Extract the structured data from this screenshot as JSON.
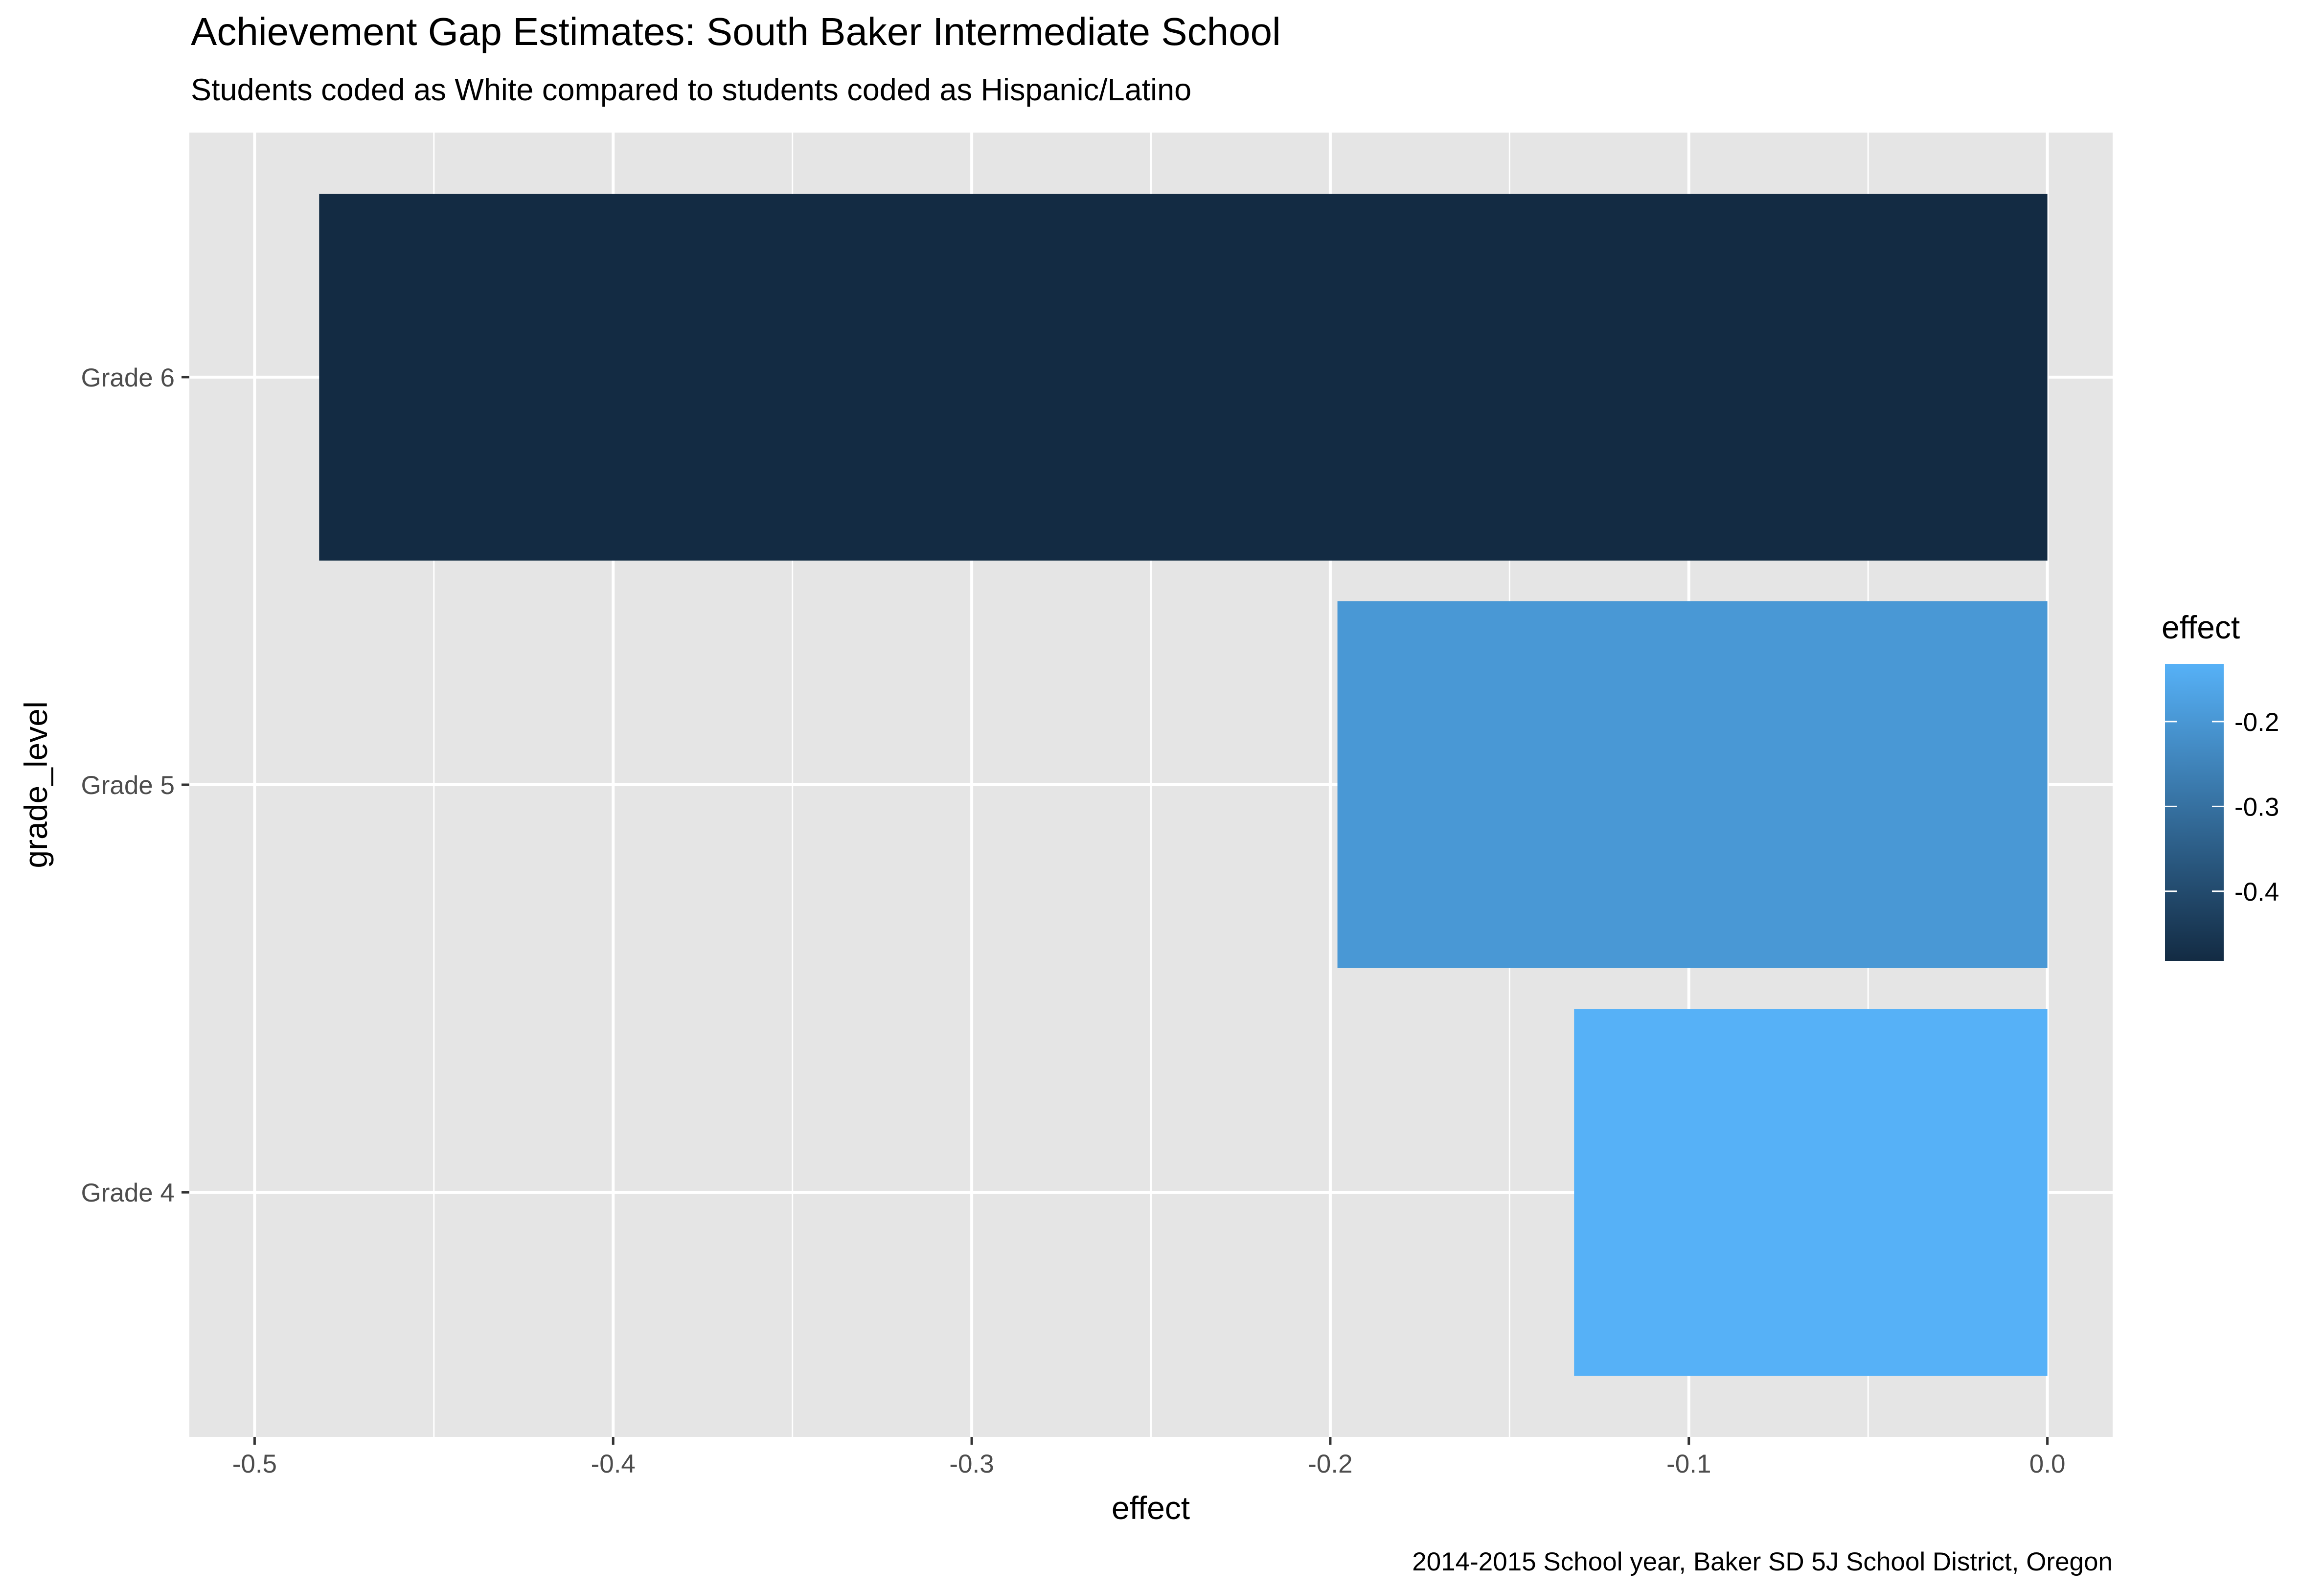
{
  "chart_data": {
    "type": "bar",
    "orientation": "horizontal",
    "title": "Achievement Gap Estimates: South Baker Intermediate School",
    "subtitle": "Students coded as White compared to students coded as Hispanic/Latino",
    "xlabel": "effect",
    "ylabel": "grade_level",
    "caption": "2014-2015 School year, Baker SD 5J School District, Oregon",
    "categories": [
      "Grade 4",
      "Grade 5",
      "Grade 6"
    ],
    "values": [
      -0.132,
      -0.198,
      -0.482
    ],
    "xlim": [
      -0.5,
      0.0
    ],
    "x_ticks": [
      "-0.5",
      "-0.4",
      "-0.3",
      "-0.2",
      "-0.1",
      "0.0"
    ],
    "x_tick_values": [
      -0.5,
      -0.4,
      -0.3,
      -0.2,
      -0.1,
      0.0
    ],
    "grid": true,
    "legend": {
      "title": "effect",
      "position": "right",
      "type": "colorbar",
      "labels": [
        "-0.2",
        "-0.3",
        "-0.4"
      ],
      "label_values": [
        -0.2,
        -0.3,
        -0.4
      ],
      "range": [
        -0.482,
        -0.132
      ],
      "color_low": "#132B43",
      "color_high": "#56B1F7"
    },
    "colors": {
      "panel_background": "#E5E5E5",
      "grid_line": "#FFFFFF"
    }
  }
}
